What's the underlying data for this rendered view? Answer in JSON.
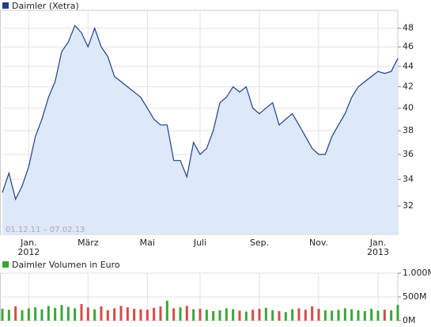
{
  "chart_data": [
    {
      "type": "area",
      "categories": [
        null,
        null,
        null,
        null,
        "Jan. 2012",
        null,
        null,
        null,
        null,
        null,
        null,
        null,
        null,
        "März",
        null,
        null,
        null,
        null,
        null,
        null,
        null,
        null,
        "Mai",
        null,
        null,
        null,
        null,
        null,
        null,
        null,
        "Juli",
        null,
        null,
        null,
        null,
        null,
        null,
        null,
        null,
        "Sep.",
        null,
        null,
        null,
        null,
        null,
        null,
        null,
        null,
        "Nov.",
        null,
        null,
        null,
        null,
        null,
        null,
        null,
        null,
        "Jan. 2013",
        null,
        null,
        null
      ],
      "series": [
        {
          "name": "Daimler (Xetra)",
          "color": "#1f3f8f",
          "values": [
            33,
            34.5,
            32.5,
            33.5,
            35,
            37.5,
            39,
            41,
            42.5,
            45.5,
            46.5,
            48.3,
            47.5,
            46,
            48,
            46,
            45,
            43,
            42.5,
            42,
            41.5,
            41,
            40,
            39,
            38.5,
            38.5,
            35.5,
            35.5,
            34.2,
            37,
            36,
            36.5,
            38,
            40.5,
            41,
            42,
            41.5,
            42,
            40,
            39.5,
            40,
            40.5,
            38.5,
            39,
            39.5,
            38.5,
            37.5,
            36.5,
            36,
            36,
            37.5,
            38.5,
            39.5,
            41,
            42,
            42.5,
            43,
            43.5,
            43.3,
            43.5,
            44.8
          ]
        }
      ],
      "ylim": [
        30,
        50
      ],
      "yticks": [
        32,
        34,
        36,
        38,
        40,
        42,
        44,
        46,
        48
      ],
      "log_scale": true,
      "grid": true,
      "fill_color": "#dde8f8",
      "annotation": "01.12.11 – 07.02.13"
    },
    {
      "type": "bar",
      "series": [
        {
          "name": "Daimler Volumen in Euro",
          "color": "#3aa63a",
          "values": [
            250,
            230,
            300,
            220,
            260,
            280,
            240,
            310,
            270,
            330,
            290,
            260,
            350,
            280,
            240,
            300,
            220,
            260,
            310,
            280,
            250,
            240,
            230,
            270,
            300,
            420,
            260,
            280,
            310,
            240,
            250,
            230,
            200,
            220,
            260,
            240,
            210,
            190,
            230,
            250,
            270,
            220,
            200,
            180,
            240,
            260,
            230,
            300,
            250,
            220,
            210,
            230,
            260,
            240,
            220,
            200,
            250,
            210,
            230,
            220,
            330
          ]
        }
      ],
      "down_color": "#d84a4a",
      "ylim": [
        0,
        1000
      ],
      "yticks": [
        {
          "value": 0,
          "label": "0M"
        },
        {
          "value": 500,
          "label": "500M"
        },
        {
          "value": 1000,
          "label": "1.000M"
        }
      ],
      "grid": true
    }
  ]
}
